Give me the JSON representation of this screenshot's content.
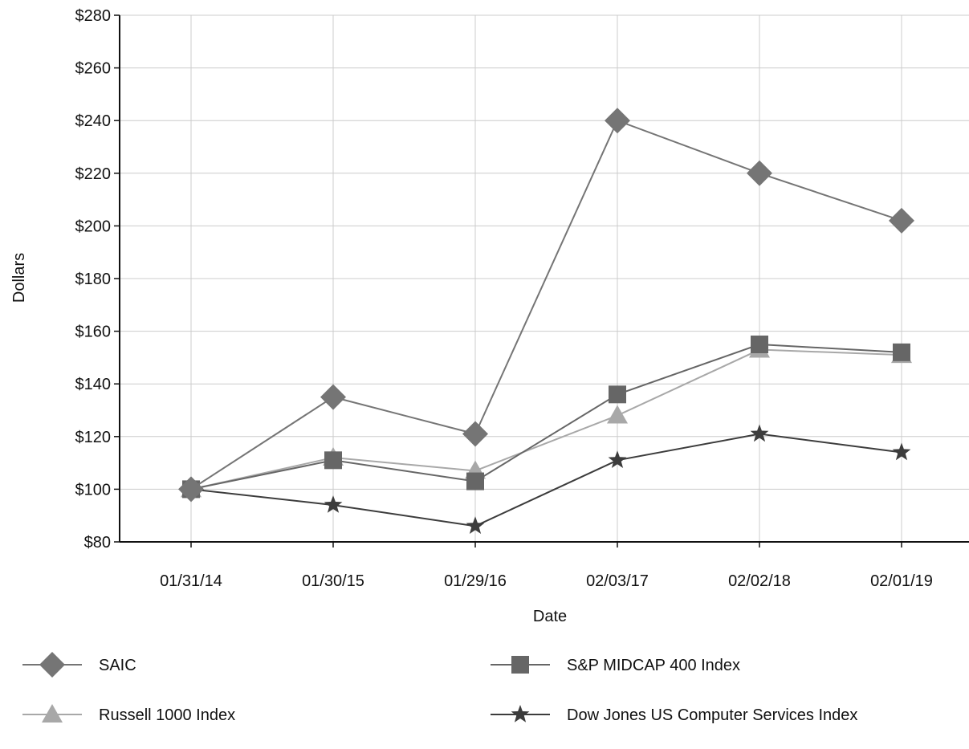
{
  "chart_data": {
    "type": "line",
    "xlabel": "Date",
    "ylabel": "Dollars",
    "categories": [
      "01/31/14",
      "01/30/15",
      "01/29/16",
      "02/03/17",
      "02/02/18",
      "02/01/19"
    ],
    "ylim": [
      80,
      280
    ],
    "yticks": [
      80,
      100,
      120,
      140,
      160,
      180,
      200,
      220,
      240,
      260,
      280
    ],
    "ytick_labels": [
      "$80",
      "$100",
      "$120",
      "$140",
      "$160",
      "$180",
      "$200",
      "$220",
      "$240",
      "$260",
      "$280"
    ],
    "grid": true,
    "legend_position": "bottom",
    "series": [
      {
        "name": "SAIC",
        "values": [
          100,
          135,
          121,
          240,
          220,
          202
        ],
        "color": "#757575",
        "marker": "diamond"
      },
      {
        "name": "S&P MIDCAP 400 Index",
        "values": [
          100,
          111,
          103,
          136,
          155,
          152
        ],
        "color": "#666666",
        "marker": "square"
      },
      {
        "name": "Russell 1000 Index",
        "values": [
          100,
          112,
          107,
          128,
          153,
          151
        ],
        "color": "#a8a8a8",
        "marker": "triangle"
      },
      {
        "name": "Dow Jones US Computer Services Index",
        "values": [
          100,
          94,
          86,
          111,
          121,
          114
        ],
        "color": "#3c3c3c",
        "marker": "star"
      }
    ]
  }
}
